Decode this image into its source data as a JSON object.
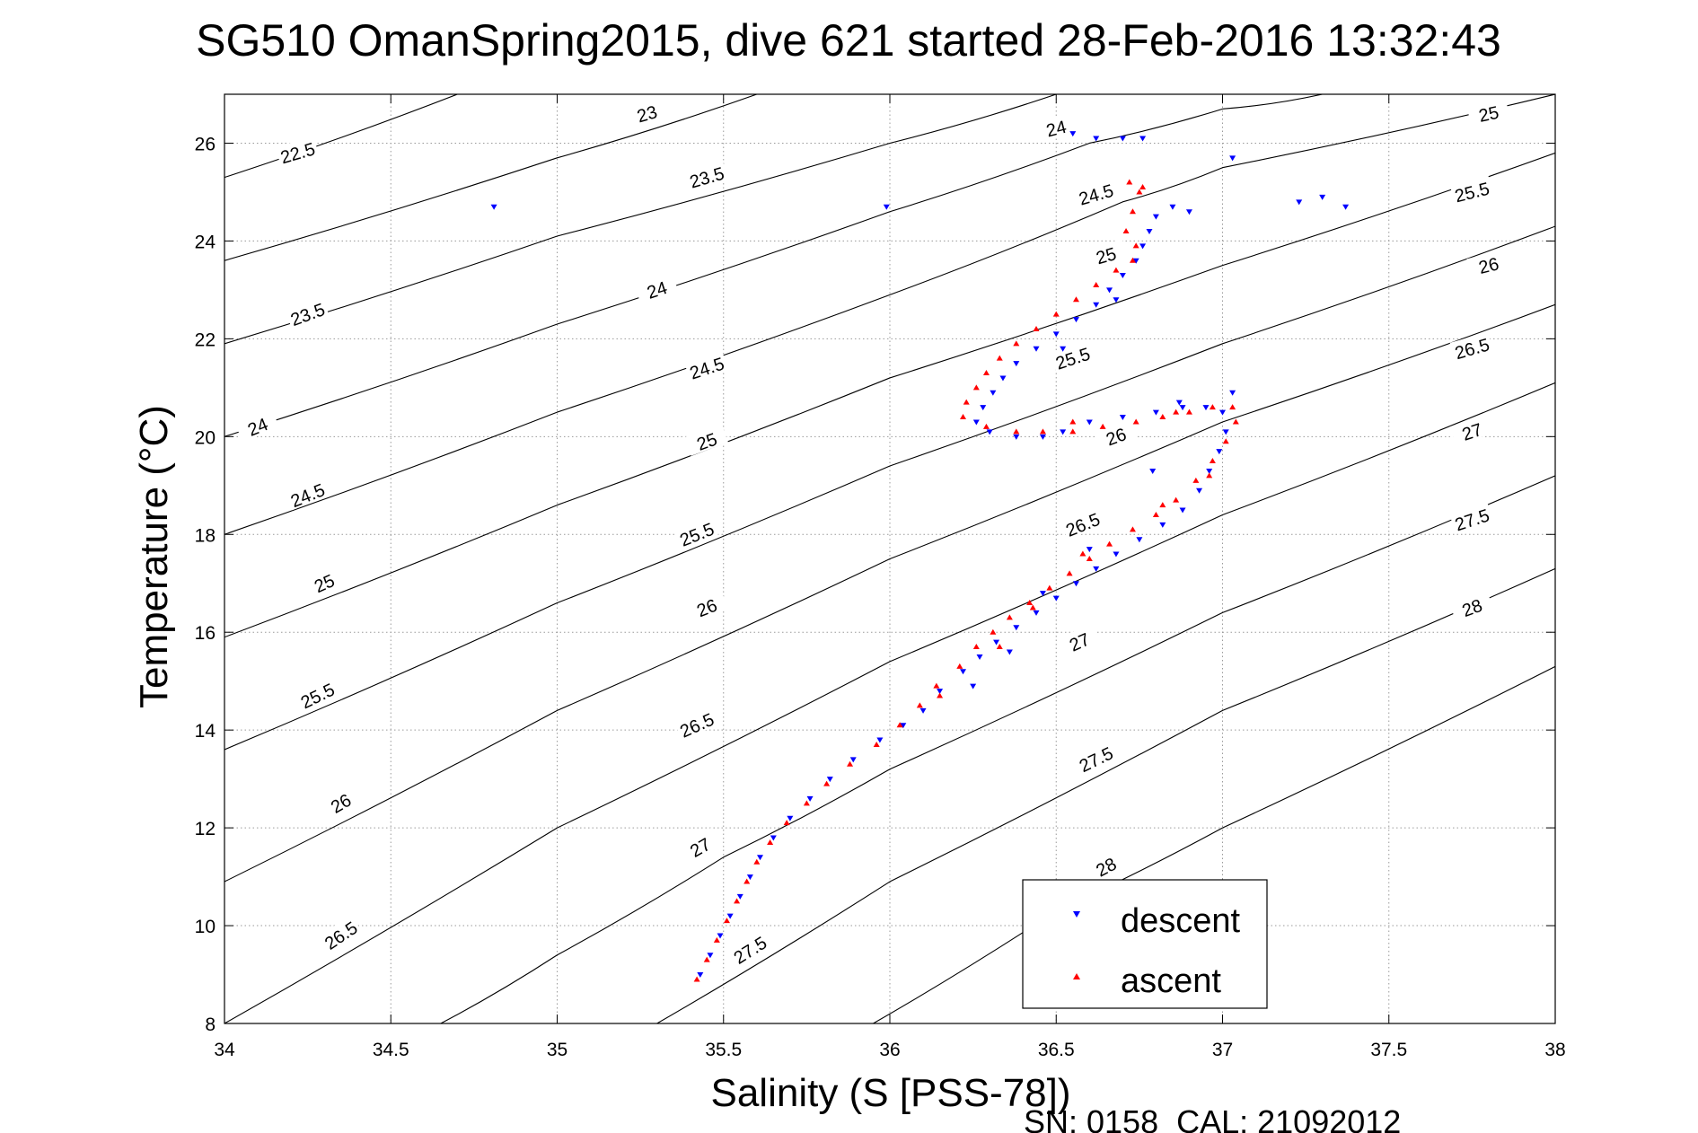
{
  "chart_data": {
    "type": "scatter",
    "title": "SG510 OmanSpring2015, dive 621 started 28-Feb-2016 13:32:43",
    "xlabel": "Salinity (S [PSS-78])",
    "ylabel": "Temperature (°C)",
    "footer": "SN: 0158  CAL: 21092012",
    "xlim": [
      34,
      38
    ],
    "ylim": [
      8,
      27
    ],
    "grid": true,
    "legend_position": "lower-right",
    "x_ticks": [
      34,
      34.5,
      35,
      35.5,
      36,
      36.5,
      37,
      37.5,
      38
    ],
    "x_tick_labels": [
      "34",
      "34.5",
      "35",
      "35.5",
      "36",
      "36.5",
      "37",
      "37.5",
      "38"
    ],
    "y_ticks": [
      8,
      10,
      12,
      14,
      16,
      18,
      20,
      22,
      24,
      26
    ],
    "y_tick_labels": [
      "8",
      "10",
      "12",
      "14",
      "16",
      "18",
      "20",
      "22",
      "24",
      "26"
    ],
    "colors": {
      "descent": "#0000ff",
      "ascent": "#ff0000",
      "contour": "#000000",
      "grid": "#9a9a9a"
    },
    "contours": [
      {
        "level": 22.5,
        "label": "22.5",
        "points": [
          [
            34.0,
            25.3
          ],
          [
            34.7,
            27.0
          ]
        ]
      },
      {
        "level": 23,
        "label": "23",
        "points": [
          [
            34.0,
            23.6
          ],
          [
            35.0,
            25.7
          ],
          [
            35.6,
            27.0
          ]
        ]
      },
      {
        "level": 23.5,
        "label": "23.5",
        "points": [
          [
            34.0,
            21.9
          ],
          [
            35.0,
            24.1
          ],
          [
            36.0,
            26.0
          ],
          [
            36.5,
            27.0
          ]
        ]
      },
      {
        "level": 24,
        "label": "24",
        "points": [
          [
            34.0,
            20.0
          ],
          [
            35.0,
            22.3
          ],
          [
            36.0,
            24.6
          ],
          [
            36.6,
            26.0
          ],
          [
            37.0,
            26.7
          ],
          [
            37.3,
            27.0
          ]
        ]
      },
      {
        "level": 24.5,
        "label": "24.5",
        "points": [
          [
            34.0,
            18.0
          ],
          [
            35.0,
            20.5
          ],
          [
            36.0,
            22.9
          ],
          [
            36.7,
            24.8
          ],
          [
            37.0,
            25.5
          ],
          [
            38.0,
            27.0
          ]
        ]
      },
      {
        "level": 25,
        "label": "25",
        "points": [
          [
            34.0,
            15.9
          ],
          [
            35.0,
            18.6
          ],
          [
            36.0,
            21.2
          ],
          [
            37.0,
            23.5
          ],
          [
            38.0,
            25.8
          ]
        ]
      },
      {
        "level": 25.5,
        "label": "25.5",
        "points": [
          [
            34.0,
            13.6
          ],
          [
            35.0,
            16.6
          ],
          [
            36.0,
            19.4
          ],
          [
            37.0,
            21.9
          ],
          [
            38.0,
            24.3
          ]
        ]
      },
      {
        "level": 26,
        "label": "26",
        "points": [
          [
            34.0,
            10.9
          ],
          [
            35.0,
            14.4
          ],
          [
            36.0,
            17.5
          ],
          [
            37.0,
            20.3
          ],
          [
            38.0,
            22.7
          ]
        ]
      },
      {
        "level": 26.5,
        "label": "26.5",
        "points": [
          [
            34.0,
            8.0
          ],
          [
            35.0,
            12.0
          ],
          [
            36.0,
            15.4
          ],
          [
            37.0,
            18.4
          ],
          [
            38.0,
            21.1
          ]
        ]
      },
      {
        "level": 27,
        "label": "27",
        "points": [
          [
            34.65,
            8.0
          ],
          [
            35.0,
            9.4
          ],
          [
            35.5,
            11.4
          ],
          [
            36.0,
            13.2
          ],
          [
            37.0,
            16.4
          ],
          [
            38.0,
            19.2
          ]
        ]
      },
      {
        "level": 27.5,
        "label": "27.5",
        "points": [
          [
            35.3,
            8.0
          ],
          [
            36.0,
            10.9
          ],
          [
            37.0,
            14.4
          ],
          [
            38.0,
            17.3
          ]
        ]
      },
      {
        "level": 28,
        "label": "28",
        "points": [
          [
            35.95,
            8.0
          ],
          [
            36.5,
            10.3
          ],
          [
            37.0,
            12.0
          ],
          [
            38.0,
            15.3
          ]
        ]
      }
    ],
    "contour_label_positions": [
      {
        "label": "22.5",
        "x": 34.22,
        "y": 25.8,
        "angle": -16
      },
      {
        "label": "23",
        "x": 35.27,
        "y": 26.6,
        "angle": -16
      },
      {
        "label": "23.5",
        "x": 35.45,
        "y": 25.3,
        "angle": -16
      },
      {
        "label": "24",
        "x": 36.5,
        "y": 26.3,
        "angle": -14
      },
      {
        "label": "24",
        "x": 35.3,
        "y": 23.0,
        "angle": -18
      },
      {
        "label": "23.5",
        "x": 34.25,
        "y": 22.5,
        "angle": -20
      },
      {
        "label": "24.5",
        "x": 36.62,
        "y": 24.95,
        "angle": -16
      },
      {
        "label": "24.5",
        "x": 35.45,
        "y": 21.4,
        "angle": -18
      },
      {
        "label": "24",
        "x": 34.1,
        "y": 20.2,
        "angle": -22
      },
      {
        "label": "25",
        "x": 36.65,
        "y": 23.7,
        "angle": -16
      },
      {
        "label": "25",
        "x": 35.45,
        "y": 19.9,
        "angle": -20
      },
      {
        "label": "24.5",
        "x": 34.25,
        "y": 18.8,
        "angle": -22
      },
      {
        "label": "25.5",
        "x": 36.55,
        "y": 21.6,
        "angle": -18
      },
      {
        "label": "25.5",
        "x": 35.42,
        "y": 18.0,
        "angle": -22
      },
      {
        "label": "25",
        "x": 34.3,
        "y": 17.0,
        "angle": -24
      },
      {
        "label": "26",
        "x": 36.68,
        "y": 20.0,
        "angle": -20
      },
      {
        "label": "26",
        "x": 35.45,
        "y": 16.5,
        "angle": -22
      },
      {
        "label": "25.5",
        "x": 34.28,
        "y": 14.7,
        "angle": -26
      },
      {
        "label": "26.5",
        "x": 36.58,
        "y": 18.2,
        "angle": -22
      },
      {
        "label": "26.5",
        "x": 35.42,
        "y": 14.1,
        "angle": -24
      },
      {
        "label": "26",
        "x": 34.35,
        "y": 12.5,
        "angle": -30
      },
      {
        "label": "27",
        "x": 36.57,
        "y": 15.8,
        "angle": -24
      },
      {
        "label": "27",
        "x": 35.43,
        "y": 11.6,
        "angle": -30
      },
      {
        "label": "26.5",
        "x": 34.35,
        "y": 9.8,
        "angle": -34
      },
      {
        "label": "27.5",
        "x": 36.62,
        "y": 13.4,
        "angle": -26
      },
      {
        "label": "27.5",
        "x": 35.58,
        "y": 9.5,
        "angle": -32
      },
      {
        "label": "28",
        "x": 36.65,
        "y": 11.2,
        "angle": -28
      },
      {
        "label": "25",
        "x": 37.8,
        "y": 26.6,
        "angle": -12
      },
      {
        "label": "25.5",
        "x": 37.75,
        "y": 25.0,
        "angle": -14
      },
      {
        "label": "26",
        "x": 37.8,
        "y": 23.5,
        "angle": -14
      },
      {
        "label": "26.5",
        "x": 37.75,
        "y": 21.8,
        "angle": -16
      },
      {
        "label": "27",
        "x": 37.75,
        "y": 20.1,
        "angle": -18
      },
      {
        "label": "27.5",
        "x": 37.75,
        "y": 18.3,
        "angle": -18
      },
      {
        "label": "28",
        "x": 37.75,
        "y": 16.5,
        "angle": -20
      }
    ],
    "series": [
      {
        "name": "descent",
        "marker": "triangle-down",
        "points": [
          [
            35.43,
            9.0
          ],
          [
            35.46,
            9.4
          ],
          [
            35.49,
            9.8
          ],
          [
            35.52,
            10.2
          ],
          [
            35.55,
            10.6
          ],
          [
            35.58,
            11.0
          ],
          [
            35.61,
            11.4
          ],
          [
            35.65,
            11.8
          ],
          [
            35.7,
            12.2
          ],
          [
            35.76,
            12.6
          ],
          [
            35.82,
            13.0
          ],
          [
            35.89,
            13.4
          ],
          [
            35.97,
            13.8
          ],
          [
            36.04,
            14.1
          ],
          [
            36.1,
            14.4
          ],
          [
            36.15,
            14.8
          ],
          [
            36.22,
            15.2
          ],
          [
            36.27,
            15.5
          ],
          [
            36.32,
            15.8
          ],
          [
            36.38,
            16.1
          ],
          [
            36.44,
            16.4
          ],
          [
            36.5,
            16.7
          ],
          [
            36.56,
            17.0
          ],
          [
            36.62,
            17.3
          ],
          [
            36.68,
            17.6
          ],
          [
            36.75,
            17.9
          ],
          [
            36.82,
            18.2
          ],
          [
            36.88,
            18.5
          ],
          [
            36.93,
            18.9
          ],
          [
            36.96,
            19.3
          ],
          [
            36.99,
            19.7
          ],
          [
            37.01,
            20.1
          ],
          [
            37.0,
            20.5
          ],
          [
            36.95,
            20.6
          ],
          [
            36.88,
            20.6
          ],
          [
            36.8,
            20.5
          ],
          [
            36.7,
            20.4
          ],
          [
            36.6,
            20.3
          ],
          [
            36.52,
            20.1
          ],
          [
            36.46,
            20.0
          ],
          [
            36.38,
            20.0
          ],
          [
            36.3,
            20.1
          ],
          [
            36.26,
            20.3
          ],
          [
            36.28,
            20.6
          ],
          [
            36.31,
            20.9
          ],
          [
            36.34,
            21.2
          ],
          [
            36.38,
            21.5
          ],
          [
            36.44,
            21.8
          ],
          [
            36.5,
            22.1
          ],
          [
            36.56,
            22.4
          ],
          [
            36.62,
            22.7
          ],
          [
            36.66,
            23.0
          ],
          [
            36.7,
            23.3
          ],
          [
            36.74,
            23.6
          ],
          [
            36.76,
            23.9
          ],
          [
            36.78,
            24.2
          ],
          [
            36.8,
            24.5
          ],
          [
            36.85,
            24.7
          ],
          [
            36.9,
            24.6
          ],
          [
            36.55,
            26.2
          ],
          [
            36.62,
            26.1
          ],
          [
            36.7,
            26.1
          ],
          [
            36.76,
            26.1
          ],
          [
            37.03,
            25.7
          ],
          [
            34.81,
            24.7
          ],
          [
            35.99,
            24.7
          ],
          [
            37.23,
            24.8
          ],
          [
            37.3,
            24.9
          ],
          [
            37.37,
            24.7
          ],
          [
            36.68,
            22.8
          ],
          [
            36.52,
            21.8
          ],
          [
            36.87,
            20.7
          ],
          [
            37.03,
            20.9
          ],
          [
            36.79,
            19.3
          ],
          [
            36.6,
            17.7
          ],
          [
            36.46,
            16.8
          ],
          [
            36.36,
            15.6
          ],
          [
            36.25,
            14.9
          ]
        ]
      },
      {
        "name": "ascent",
        "marker": "triangle-up",
        "points": [
          [
            35.42,
            8.9
          ],
          [
            35.45,
            9.3
          ],
          [
            35.48,
            9.7
          ],
          [
            35.51,
            10.1
          ],
          [
            35.54,
            10.5
          ],
          [
            35.57,
            10.9
          ],
          [
            35.6,
            11.3
          ],
          [
            35.64,
            11.7
          ],
          [
            35.69,
            12.1
          ],
          [
            35.75,
            12.5
          ],
          [
            35.81,
            12.9
          ],
          [
            35.88,
            13.3
          ],
          [
            35.96,
            13.7
          ],
          [
            36.03,
            14.1
          ],
          [
            36.09,
            14.5
          ],
          [
            36.14,
            14.9
          ],
          [
            36.21,
            15.3
          ],
          [
            36.26,
            15.7
          ],
          [
            36.31,
            16.0
          ],
          [
            36.36,
            16.3
          ],
          [
            36.42,
            16.6
          ],
          [
            36.48,
            16.9
          ],
          [
            36.54,
            17.2
          ],
          [
            36.6,
            17.5
          ],
          [
            36.66,
            17.8
          ],
          [
            36.73,
            18.1
          ],
          [
            36.8,
            18.4
          ],
          [
            36.86,
            18.7
          ],
          [
            36.92,
            19.1
          ],
          [
            36.97,
            19.5
          ],
          [
            37.01,
            19.9
          ],
          [
            37.04,
            20.3
          ],
          [
            37.03,
            20.6
          ],
          [
            36.97,
            20.6
          ],
          [
            36.9,
            20.5
          ],
          [
            36.82,
            20.4
          ],
          [
            36.74,
            20.3
          ],
          [
            36.64,
            20.2
          ],
          [
            36.55,
            20.1
          ],
          [
            36.46,
            20.1
          ],
          [
            36.38,
            20.1
          ],
          [
            36.29,
            20.2
          ],
          [
            36.22,
            20.4
          ],
          [
            36.23,
            20.7
          ],
          [
            36.26,
            21.0
          ],
          [
            36.29,
            21.3
          ],
          [
            36.33,
            21.6
          ],
          [
            36.38,
            21.9
          ],
          [
            36.44,
            22.2
          ],
          [
            36.5,
            22.5
          ],
          [
            36.56,
            22.8
          ],
          [
            36.62,
            23.1
          ],
          [
            36.68,
            23.4
          ],
          [
            36.73,
            23.6
          ],
          [
            36.74,
            23.9
          ],
          [
            36.71,
            24.2
          ],
          [
            36.73,
            24.6
          ],
          [
            36.75,
            25.0
          ],
          [
            36.72,
            25.2
          ],
          [
            36.76,
            25.1
          ],
          [
            36.86,
            20.5
          ],
          [
            36.55,
            20.3
          ],
          [
            36.43,
            16.5
          ],
          [
            36.33,
            15.7
          ],
          [
            36.15,
            14.7
          ],
          [
            36.96,
            19.2
          ],
          [
            36.82,
            18.6
          ],
          [
            36.58,
            17.6
          ]
        ]
      }
    ]
  },
  "legend": {
    "descent_label": "descent",
    "ascent_label": "ascent"
  }
}
